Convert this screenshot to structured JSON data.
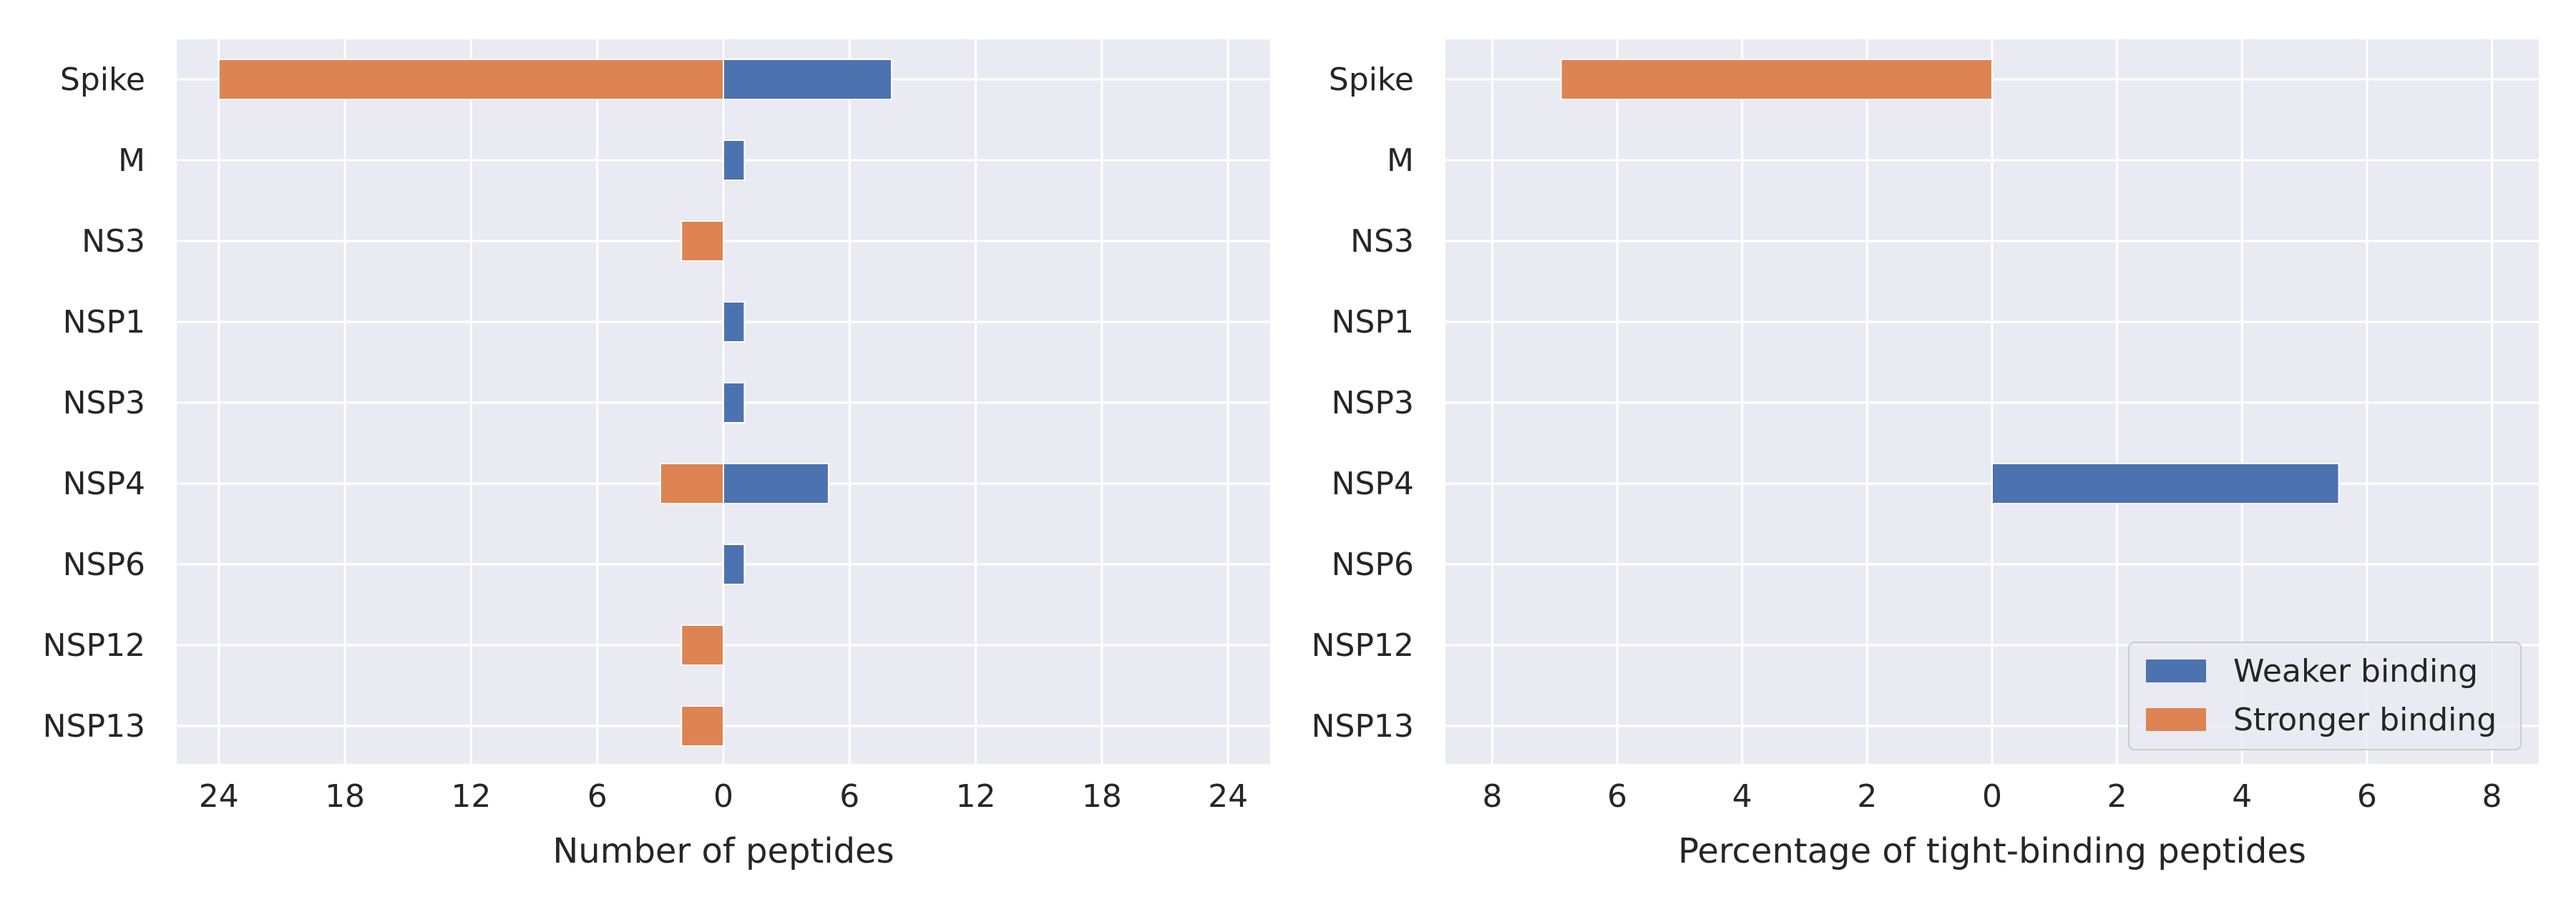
{
  "chart_data": [
    {
      "type": "bar",
      "orientation": "horizontal",
      "diverging": true,
      "categories": [
        "Spike",
        "M",
        "NS3",
        "NSP1",
        "NSP3",
        "NSP4",
        "NSP6",
        "NSP12",
        "NSP13"
      ],
      "series": [
        {
          "name": "Weaker binding",
          "direction": "right",
          "color": "#4c72b0",
          "values": [
            8,
            1,
            0,
            1,
            1,
            5,
            1,
            0,
            0
          ]
        },
        {
          "name": "Stronger binding",
          "direction": "left",
          "color": "#dd8452",
          "values": [
            24,
            0,
            2,
            0,
            0,
            3,
            0,
            2,
            2
          ]
        }
      ],
      "xlabel": "Number of peptides",
      "ylabel": "",
      "xlim": [
        -26,
        26
      ],
      "xticks": [
        -24,
        -18,
        -12,
        -6,
        0,
        6,
        12,
        18,
        24
      ],
      "xtick_labels": [
        "24",
        "18",
        "12",
        "6",
        "0",
        "6",
        "12",
        "18",
        "24"
      ],
      "grid": true
    },
    {
      "type": "bar",
      "orientation": "horizontal",
      "diverging": true,
      "categories": [
        "Spike",
        "M",
        "NS3",
        "NSP1",
        "NSP3",
        "NSP4",
        "NSP6",
        "NSP12",
        "NSP13"
      ],
      "series": [
        {
          "name": "Weaker binding",
          "direction": "right",
          "color": "#4c72b0",
          "values": [
            0,
            0,
            0,
            0,
            0,
            5.55,
            0,
            0,
            0
          ]
        },
        {
          "name": "Stronger binding",
          "direction": "left",
          "color": "#dd8452",
          "values": [
            6.9,
            0,
            0,
            0,
            0,
            0,
            0,
            0,
            0
          ]
        }
      ],
      "xlabel": "Percentage of tight-binding peptides",
      "ylabel": "",
      "xlim": [
        -8.75,
        8.75
      ],
      "xticks": [
        -8,
        -6,
        -4,
        -2,
        0,
        2,
        4,
        6,
        8
      ],
      "xtick_labels": [
        "8",
        "6",
        "4",
        "2",
        "0",
        "2",
        "4",
        "6",
        "8"
      ],
      "grid": true,
      "legend": {
        "placement": "lower-right",
        "entries": [
          {
            "label": "Weaker binding",
            "color": "#4c72b0"
          },
          {
            "label": "Stronger binding",
            "color": "#dd8452"
          }
        ]
      }
    }
  ],
  "colors": {
    "plot_background": "#eaeaf2",
    "grid": "#ffffff",
    "text": "#262626"
  }
}
